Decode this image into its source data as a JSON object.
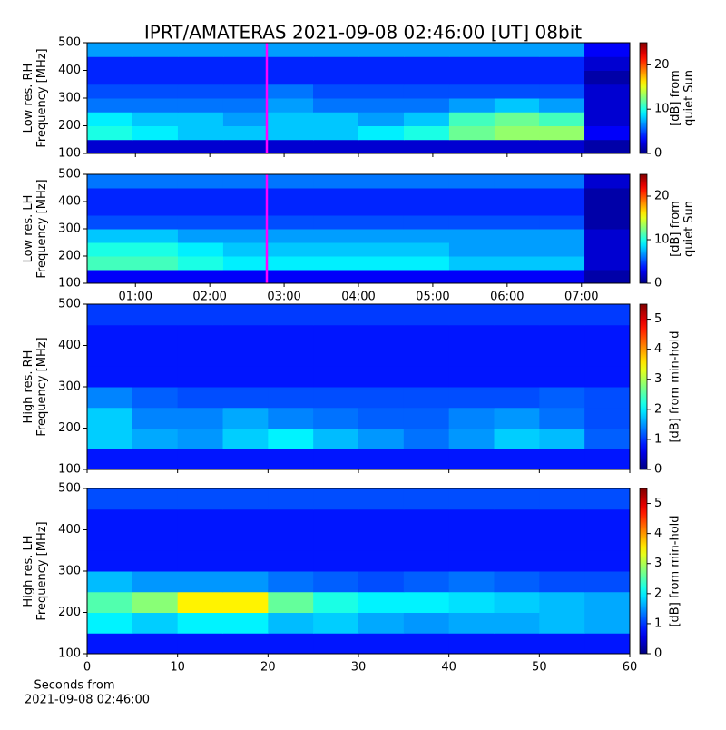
{
  "title": "IPRT/AMATERAS 2021-09-08 02:46:00 [UT]   08bit",
  "chart_data": [
    {
      "type": "heatmap",
      "ylabel": [
        "Low res. RH",
        "Frequency [MHz]"
      ],
      "colorbar_label": [
        "[dB] from",
        "quiet Sun"
      ],
      "xlim": [
        0.35,
        7.65
      ],
      "xticks": [
        1,
        2,
        3,
        4,
        5,
        6,
        7
      ],
      "xtick_labels": false,
      "ylim": [
        100,
        500
      ],
      "yticks": [
        100,
        200,
        300,
        400,
        500
      ],
      "clim": [
        0,
        25
      ],
      "cticks": [
        0,
        10,
        20
      ],
      "colormap": "jet",
      "marker_x": 2.767,
      "marker_color": "#ff00ff",
      "x_bins": [
        0.35,
        0.96,
        1.57,
        2.18,
        2.78,
        3.39,
        4.0,
        4.61,
        5.22,
        5.83,
        6.43,
        7.04,
        7.65
      ],
      "y_bins": [
        100,
        150,
        200,
        250,
        300,
        350,
        400,
        450,
        500
      ],
      "z": [
        [
          2,
          2,
          2,
          2,
          2,
          2,
          2,
          2,
          2,
          2,
          2,
          1
        ],
        [
          10,
          9,
          8,
          8,
          8,
          8,
          9,
          10,
          12,
          13,
          13,
          3
        ],
        [
          9,
          8,
          8,
          7,
          8,
          8,
          7,
          8,
          11,
          12,
          11,
          2
        ],
        [
          6,
          6,
          6,
          6,
          7,
          6,
          6,
          6,
          7,
          8,
          7,
          2
        ],
        [
          5,
          5,
          5,
          5,
          6,
          5,
          5,
          5,
          5,
          5,
          5,
          2
        ],
        [
          4,
          4,
          4,
          4,
          4,
          4,
          4,
          4,
          4,
          4,
          4,
          1
        ],
        [
          4,
          4,
          4,
          4,
          4,
          4,
          4,
          4,
          4,
          4,
          4,
          2
        ],
        [
          7,
          7,
          7,
          7,
          7,
          7,
          7,
          7,
          7,
          7,
          7,
          3
        ]
      ]
    },
    {
      "type": "heatmap",
      "ylabel": [
        "Low res. LH",
        "Frequency [MHz]"
      ],
      "colorbar_label": [
        "[dB] from",
        "quiet Sun"
      ],
      "xlim": [
        0.35,
        7.65
      ],
      "xticks": [
        {
          "value": 1,
          "label": "01:00"
        },
        {
          "value": 2,
          "label": "02:00"
        },
        {
          "value": 3,
          "label": "03:00"
        },
        {
          "value": 4,
          "label": "04:00"
        },
        {
          "value": 5,
          "label": "05:00"
        },
        {
          "value": 6,
          "label": "06:00"
        },
        {
          "value": 7,
          "label": "07:00"
        }
      ],
      "ylim": [
        100,
        500
      ],
      "yticks": [
        100,
        200,
        300,
        400,
        500
      ],
      "clim": [
        0,
        25
      ],
      "cticks": [
        0,
        10,
        20
      ],
      "colormap": "jet",
      "marker_x": 2.767,
      "marker_color": "#ff00ff",
      "x_bins": [
        0.35,
        0.96,
        1.57,
        2.18,
        2.78,
        3.39,
        4.0,
        4.61,
        5.22,
        5.83,
        6.43,
        7.04,
        7.65
      ],
      "y_bins": [
        100,
        150,
        200,
        250,
        300,
        350,
        400,
        450,
        500
      ],
      "z": [
        [
          3,
          3,
          3,
          3,
          3,
          3,
          3,
          3,
          3,
          3,
          3,
          1
        ],
        [
          11,
          11,
          10,
          9,
          9,
          9,
          9,
          9,
          8,
          8,
          8,
          2
        ],
        [
          10,
          10,
          9,
          8,
          8,
          8,
          8,
          8,
          7,
          7,
          7,
          2
        ],
        [
          8,
          8,
          7,
          7,
          7,
          7,
          7,
          7,
          7,
          7,
          7,
          2
        ],
        [
          5,
          5,
          5,
          5,
          5,
          5,
          5,
          5,
          5,
          5,
          5,
          1
        ],
        [
          4,
          4,
          4,
          4,
          4,
          4,
          4,
          4,
          4,
          4,
          4,
          1
        ],
        [
          4,
          4,
          4,
          4,
          4,
          4,
          4,
          4,
          4,
          4,
          4,
          1
        ],
        [
          6,
          6,
          6,
          6,
          6,
          6,
          6,
          6,
          6,
          6,
          6,
          2
        ]
      ]
    },
    {
      "type": "heatmap",
      "ylabel": [
        "High res. RH",
        "Frequency [MHz]"
      ],
      "colorbar_label": [
        "[dB] from min-hold"
      ],
      "xlim": [
        0,
        60
      ],
      "xticks": [
        0,
        10,
        20,
        30,
        40,
        50,
        60
      ],
      "xtick_labels": false,
      "ylim": [
        100,
        500
      ],
      "yticks": [
        100,
        200,
        300,
        400,
        500
      ],
      "clim": [
        0,
        5.5
      ],
      "cticks": [
        0,
        1,
        2,
        3,
        4,
        5
      ],
      "colormap": "jet",
      "x_bins": [
        0,
        5,
        10,
        15,
        20,
        25,
        30,
        35,
        40,
        45,
        50,
        55,
        60
      ],
      "y_bins": [
        100,
        150,
        200,
        250,
        300,
        350,
        400,
        450,
        500
      ],
      "z": [
        [
          0.8,
          0.8,
          0.8,
          0.8,
          0.8,
          0.8,
          0.8,
          0.8,
          0.8,
          0.8,
          0.8,
          0.8
        ],
        [
          1.8,
          1.6,
          1.5,
          1.8,
          2,
          1.7,
          1.5,
          1.3,
          1.5,
          1.8,
          1.7,
          1.2
        ],
        [
          1.8,
          1.4,
          1.4,
          1.6,
          1.4,
          1.3,
          1.2,
          1.2,
          1.4,
          1.5,
          1.3,
          1.1
        ],
        [
          1.4,
          1.2,
          1.1,
          1.1,
          1.1,
          1.1,
          1.1,
          1.1,
          1.1,
          1.1,
          1.2,
          1.1
        ],
        [
          0.8,
          0.8,
          0.8,
          0.8,
          0.8,
          0.8,
          0.8,
          0.8,
          0.8,
          0.8,
          0.8,
          0.8
        ],
        [
          0.8,
          0.8,
          0.8,
          0.8,
          0.8,
          0.8,
          0.8,
          0.8,
          0.8,
          0.8,
          0.8,
          0.8
        ],
        [
          0.8,
          0.8,
          0.8,
          0.8,
          0.8,
          0.8,
          0.8,
          0.8,
          0.8,
          0.8,
          0.8,
          0.8
        ],
        [
          1,
          1,
          1,
          1,
          1,
          1,
          1,
          1,
          1,
          1,
          1,
          1
        ]
      ]
    },
    {
      "type": "heatmap",
      "ylabel": [
        "High res. LH",
        "Frequency [MHz]"
      ],
      "colorbar_label": [
        "[dB] from min-hold"
      ],
      "xlabel": [
        "Seconds from",
        "2021-09-08 02:46:00"
      ],
      "xlim": [
        0,
        60
      ],
      "xticks": [
        0,
        10,
        20,
        30,
        40,
        50,
        60
      ],
      "ylim": [
        100,
        500
      ],
      "yticks": [
        100,
        200,
        300,
        400,
        500
      ],
      "clim": [
        0,
        5.5
      ],
      "cticks": [
        0,
        1,
        2,
        3,
        4,
        5
      ],
      "colormap": "jet",
      "x_bins": [
        0,
        5,
        10,
        15,
        20,
        25,
        30,
        35,
        40,
        45,
        50,
        55,
        60
      ],
      "y_bins": [
        100,
        150,
        200,
        250,
        300,
        350,
        400,
        450,
        500
      ],
      "z": [
        [
          0.8,
          0.8,
          0.8,
          0.8,
          0.8,
          0.8,
          0.8,
          0.8,
          0.8,
          0.8,
          0.8,
          0.8
        ],
        [
          2,
          1.8,
          2,
          2,
          1.7,
          1.8,
          1.6,
          1.5,
          1.6,
          1.6,
          1.7,
          1.6
        ],
        [
          2.5,
          2.8,
          3.5,
          3.5,
          2.6,
          2.2,
          2,
          2,
          1.9,
          1.8,
          1.7,
          1.6
        ],
        [
          1.7,
          1.5,
          1.5,
          1.5,
          1.3,
          1.2,
          1.1,
          1.2,
          1.3,
          1.2,
          1.1,
          1.1
        ],
        [
          0.8,
          0.8,
          0.8,
          0.8,
          0.8,
          0.8,
          0.8,
          0.8,
          0.8,
          0.8,
          0.8,
          0.8
        ],
        [
          0.8,
          0.8,
          0.8,
          0.8,
          0.8,
          0.8,
          0.8,
          0.8,
          0.8,
          0.8,
          0.8,
          0.8
        ],
        [
          0.8,
          0.8,
          0.8,
          0.8,
          0.8,
          0.8,
          0.8,
          0.8,
          0.8,
          0.8,
          0.8,
          0.8
        ],
        [
          1.1,
          1.1,
          1.1,
          1.1,
          1.1,
          1.1,
          1.1,
          1.1,
          1.1,
          1.1,
          1.1,
          1.1
        ]
      ]
    }
  ]
}
